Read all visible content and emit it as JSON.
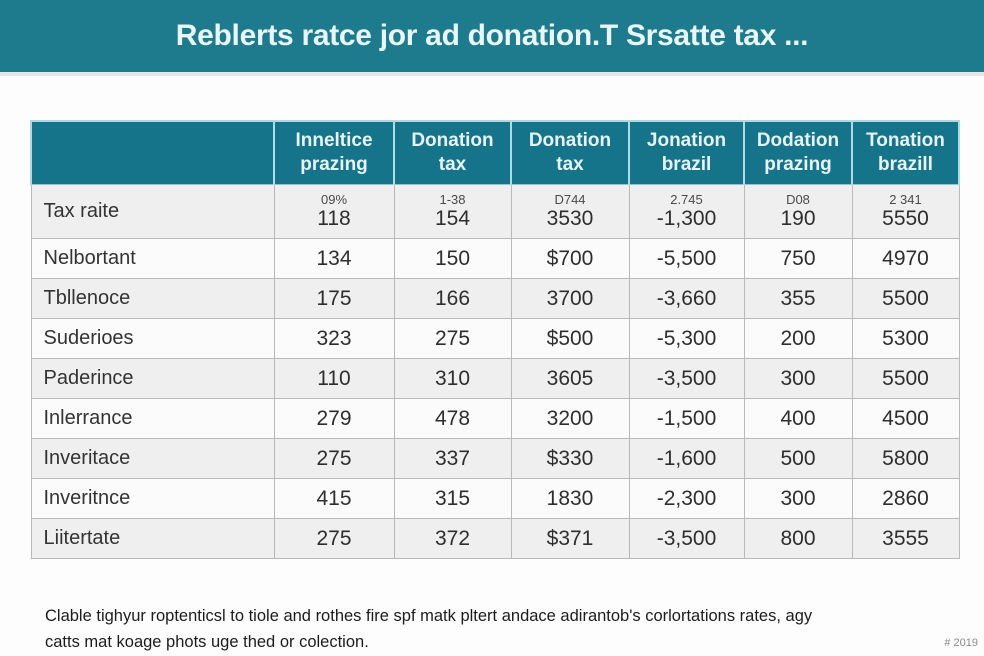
{
  "banner": {
    "title": "Reblerts ratce jor ad donation.T Srsatte tax ..."
  },
  "colors": {
    "banner_bg": "#1d7b8d",
    "table_header_bg": "#16748a",
    "header_text": "#e6f3f6",
    "stripe_row_bg": "#efefef",
    "plain_row_bg": "#fbfbfb"
  },
  "chart_data": {
    "type": "table",
    "title": "Reblerts ratce jor ad donation.T Srsatte tax ...",
    "columns": [
      "",
      "Inneltice prazing",
      "Donation tax",
      "Donation tax",
      "Jonation brazil",
      "Dodation prazing",
      "Tonation brazill"
    ],
    "rows": [
      {
        "label": "Tax raite",
        "sub_values": [
          "09%",
          "1-38",
          "D744",
          "2.745",
          "D08",
          "2 341"
        ],
        "values": [
          "118",
          "154",
          "3530",
          "-1,300",
          "190",
          "5550"
        ]
      },
      {
        "label": "Nelbortant",
        "values": [
          "134",
          "150",
          "$700",
          "-5,500",
          "750",
          "4970"
        ]
      },
      {
        "label": "Tbllenoce",
        "values": [
          "175",
          "166",
          "3700",
          "-3,660",
          "355",
          "5500"
        ]
      },
      {
        "label": "Suderioes",
        "values": [
          "323",
          "275",
          "$500",
          "-5,300",
          "200",
          "5300"
        ]
      },
      {
        "label": "Paderince",
        "values": [
          "110",
          "310",
          "3605",
          "-3,500",
          "300",
          "5500"
        ]
      },
      {
        "label": "Inlerrance",
        "values": [
          "279",
          "478",
          "3200",
          "-1,500",
          "400",
          "4500"
        ]
      },
      {
        "label": "Inveritace",
        "values": [
          "275",
          "337",
          "$330",
          "-1,600",
          "500",
          "5800"
        ]
      },
      {
        "label": "Inveritnce",
        "values": [
          "415",
          "315",
          "1830",
          "-2,300",
          "300",
          "2860"
        ]
      },
      {
        "label": "Liitertate",
        "values": [
          "275",
          "372",
          "$371",
          "-3,500",
          "800",
          "3555"
        ]
      }
    ]
  },
  "footnote": {
    "line1": "Clable tighyur roptenticsl to tiole and rothes fire spf matk pltert andace adirantob's corlortations rates, agy",
    "line2": "catts mat koage phots uge thed or colection."
  },
  "corner_note": "# 2019"
}
